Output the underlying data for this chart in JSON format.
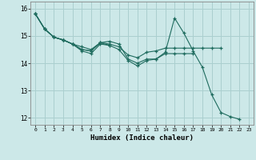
{
  "xlabel": "Humidex (Indice chaleur)",
  "ylabel": "",
  "background_color": "#cce8e8",
  "grid_color": "#aacfcf",
  "line_color": "#1e6b5e",
  "xlim": [
    -0.5,
    23.5
  ],
  "ylim": [
    11.75,
    16.25
  ],
  "yticks": [
    12,
    13,
    14,
    15,
    16
  ],
  "xticks": [
    0,
    1,
    2,
    3,
    4,
    5,
    6,
    7,
    8,
    9,
    10,
    11,
    12,
    13,
    14,
    15,
    16,
    17,
    18,
    19,
    20,
    21,
    22,
    23
  ],
  "series": [
    {
      "x": [
        0,
        1,
        2,
        3,
        4,
        5,
        6,
        7,
        8,
        9,
        10,
        11,
        12,
        13,
        14,
        15,
        16,
        17,
        18,
        19,
        20,
        21,
        22
      ],
      "y": [
        15.8,
        15.25,
        14.95,
        14.85,
        14.7,
        14.45,
        14.35,
        14.7,
        14.65,
        14.5,
        14.1,
        13.9,
        14.1,
        14.15,
        14.4,
        15.65,
        15.1,
        14.45,
        13.85,
        12.85,
        12.2,
        12.05,
        11.95
      ]
    },
    {
      "x": [
        0,
        1,
        2,
        3,
        4,
        5,
        6,
        7,
        8,
        9,
        10,
        11,
        12,
        13,
        14,
        15,
        16,
        17,
        18,
        19,
        20
      ],
      "y": [
        15.8,
        15.25,
        14.95,
        14.85,
        14.7,
        14.5,
        14.45,
        14.75,
        14.7,
        14.6,
        14.3,
        14.2,
        14.4,
        14.45,
        14.55,
        14.55,
        14.55,
        14.55,
        14.55,
        14.55,
        14.55
      ]
    },
    {
      "x": [
        0,
        1,
        2,
        3,
        4,
        5,
        6,
        7,
        8,
        9,
        10,
        11,
        12,
        13,
        14,
        15,
        16,
        17
      ],
      "y": [
        15.8,
        15.25,
        14.95,
        14.85,
        14.7,
        14.5,
        14.45,
        14.75,
        14.8,
        14.7,
        14.15,
        14.0,
        14.15,
        14.15,
        14.35,
        14.35,
        14.35,
        14.35
      ]
    },
    {
      "x": [
        0,
        1,
        2,
        3,
        4,
        5,
        6,
        7,
        8
      ],
      "y": [
        15.8,
        15.25,
        14.95,
        14.85,
        14.7,
        14.6,
        14.5,
        14.75,
        14.65
      ]
    }
  ]
}
